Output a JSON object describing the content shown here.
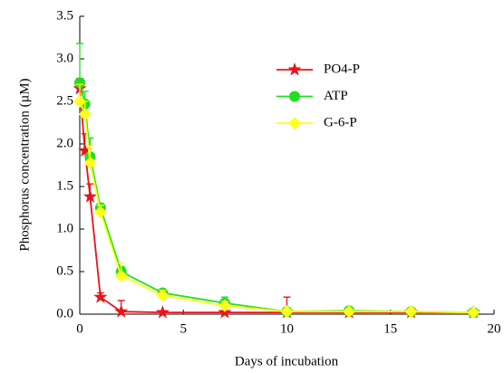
{
  "chart_data": {
    "type": "line",
    "x_label": "Days of incubation",
    "y_label": "Phosphorus concentration (µM)",
    "x": [
      0,
      0.25,
      0.5,
      1,
      2,
      4,
      7,
      10,
      13,
      16,
      19
    ],
    "xlim": [
      0,
      20
    ],
    "xticks": [
      0,
      5,
      10,
      15,
      20
    ],
    "ylim": [
      0,
      3.5
    ],
    "yticks": [
      {
        "value": 0,
        "label": "0.0"
      },
      0.5,
      {
        "value": 1,
        "label": "1.0"
      },
      1.5,
      {
        "value": 2,
        "label": "2.0"
      },
      2.5,
      {
        "value": 3,
        "label": "3.0"
      },
      3.5
    ],
    "series": [
      {
        "name": "PO4-P",
        "color": "#e8141c",
        "marker": "star",
        "values": [
          2.65,
          1.92,
          1.38,
          0.2,
          0.03,
          0.02,
          0.02,
          0.02,
          0.02,
          0.02,
          0.02
        ],
        "errors": [
          0.12,
          0.2,
          0.15,
          0.05,
          0.13,
          0.02,
          0.02,
          0.18,
          0.02,
          0.02,
          0.02
        ]
      },
      {
        "name": "ATP",
        "color": "#1ee01e",
        "marker": "circle",
        "values": [
          2.72,
          2.47,
          1.85,
          1.25,
          0.5,
          0.25,
          0.13,
          0.03,
          0.04,
          0.03,
          0.02
        ],
        "errors": [
          0.46,
          0.15,
          0.22,
          0.05,
          0.06,
          0.04,
          0.07,
          0.02,
          0.02,
          0.02,
          0.02
        ]
      },
      {
        "name": "G-6-P",
        "color": "#ffff1e",
        "marker": "diamond",
        "values": [
          2.5,
          2.35,
          1.78,
          1.2,
          0.45,
          0.22,
          0.1,
          0.03,
          0.03,
          0.03,
          0.02
        ],
        "errors": [
          0.2,
          0.15,
          0.2,
          0.08,
          0.15,
          0.06,
          0.05,
          0.02,
          0.02,
          0.02,
          0.02
        ]
      }
    ]
  }
}
